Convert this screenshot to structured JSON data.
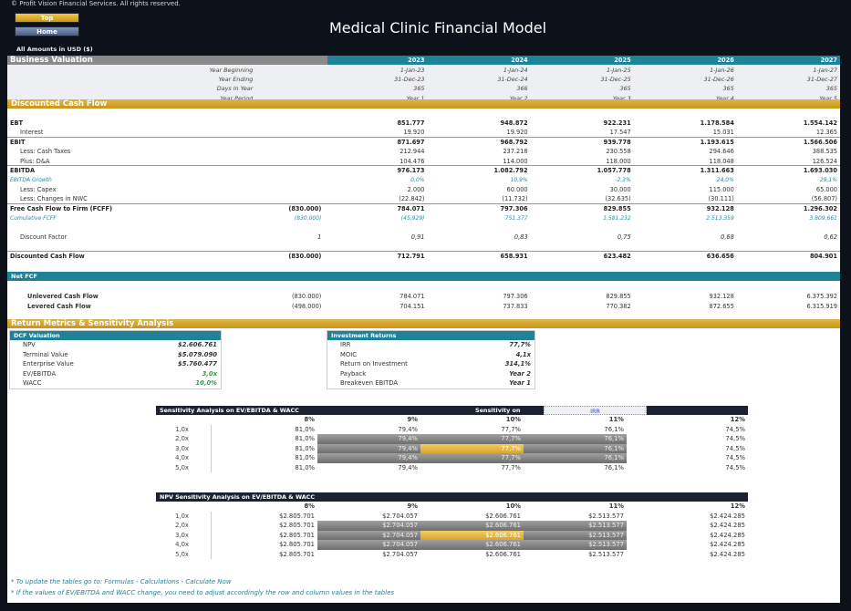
{
  "copyright": "© Profit Vision Financial Services. All rights reserved.",
  "nav": {
    "top": "Top",
    "home": "Home"
  },
  "title": "Medical Clinic Financial Model",
  "amounts_note": "All Amounts in  USD ($)",
  "business_valuation": {
    "title": "Business Valuation",
    "years": [
      "2023",
      "2024",
      "2025",
      "2026",
      "2027"
    ],
    "header_rows": [
      {
        "label": "Year Beginning",
        "values": [
          "1-Jan-23",
          "1-Jan-24",
          "1-Jan-25",
          "1-Jan-26",
          "1-Jan-27"
        ]
      },
      {
        "label": "Year Ending",
        "values": [
          "31-Dec-23",
          "31-Dec-24",
          "31-Dec-25",
          "31-Dec-26",
          "31-Dec-27"
        ]
      },
      {
        "label": "Days in Year",
        "values": [
          "365",
          "366",
          "365",
          "365",
          "365"
        ]
      },
      {
        "label": "Year Period",
        "values": [
          "Year 1",
          "Year 2",
          "Year 3",
          "Year 4",
          "Year 5"
        ]
      }
    ]
  },
  "dcf": {
    "title": "Discounted Cash Flow",
    "rows": [
      {
        "label": "EBT",
        "initial": "",
        "values": [
          "851.777",
          "948.872",
          "922.231",
          "1.178.584",
          "1.554.142"
        ]
      },
      {
        "label": "Interest",
        "initial": "",
        "values": [
          "19.920",
          "19.920",
          "17.547",
          "15.031",
          "12.365"
        ]
      },
      {
        "label": "EBIT",
        "initial": "",
        "values": [
          "871.697",
          "968.792",
          "939.778",
          "1.193.615",
          "1.566.506"
        ]
      },
      {
        "label": "Less: Cash Taxes",
        "initial": "",
        "values": [
          "212.944",
          "237.218",
          "230.558",
          "294.646",
          "388.535"
        ]
      },
      {
        "label": "Plus: D&A",
        "initial": "",
        "values": [
          "104.476",
          "114.000",
          "118.000",
          "118.048",
          "126.524"
        ]
      },
      {
        "label": "EBITDA",
        "initial": "",
        "values": [
          "976.173",
          "1.082.792",
          "1.057.778",
          "1.311.663",
          "1.693.030"
        ]
      },
      {
        "label": "EBITDA Growth",
        "initial": "",
        "values": [
          "0,0%",
          "10,9%",
          "-2,3%",
          "24,0%",
          "29,1%"
        ]
      },
      {
        "label": "Less: Capex",
        "initial": "",
        "values": [
          "2.000",
          "60.000",
          "30.000",
          "115.000",
          "65.000"
        ]
      },
      {
        "label": "Less: Changes in NWC",
        "initial": "",
        "values": [
          "(22.842)",
          "(11.732)",
          "(32.635)",
          "(30.111)",
          "(56.807)"
        ]
      },
      {
        "label": "Free Cash Flow to Firm (FCFF)",
        "initial": "(830.000)",
        "values": [
          "784.071",
          "797.306",
          "829.855",
          "932.128",
          "1.296.302"
        ]
      },
      {
        "label": "Cumulative FCFF",
        "initial": "(830.000)",
        "values": [
          "(45.929)",
          "751.377",
          "1.581.232",
          "2.513.359",
          "3.809.661"
        ]
      },
      {
        "label": "",
        "initial": "",
        "values": [
          "",
          "",
          "",
          "",
          ""
        ]
      },
      {
        "label": "Discount Factor",
        "initial": "1",
        "values": [
          "0,91",
          "0,83",
          "0,75",
          "0,68",
          "0,62"
        ]
      },
      {
        "label": "",
        "initial": "",
        "values": [
          "",
          "",
          "",
          "",
          ""
        ]
      },
      {
        "label": "Discounted Cash Flow",
        "initial": "(830.000)",
        "values": [
          "712.791",
          "658.931",
          "623.482",
          "636.656",
          "804.901"
        ]
      }
    ]
  },
  "net_fcf": {
    "title": "Net FCF",
    "rows": [
      {
        "label": "Unlevered Cash Flow",
        "initial": "(830.000)",
        "values": [
          "784.071",
          "797.306",
          "829.855",
          "932.128",
          "6.375.392"
        ]
      },
      {
        "label": "Levered Cash Flow",
        "initial": "(498.000)",
        "values": [
          "704.151",
          "737.833",
          "770.382",
          "872.655",
          "6.315.919"
        ]
      }
    ]
  },
  "returns": {
    "title": "Return Metrics & Sensitivity Analysis",
    "dcf_valuation": {
      "title": "DCF Valuation",
      "rows": [
        {
          "label": "NPV",
          "value": "$2.606.761"
        },
        {
          "label": "Terminal Value",
          "value": "$5.079.090"
        },
        {
          "label": "Enterprise Value",
          "value": "$5.760.477"
        },
        {
          "label": "EV/EBITDA",
          "value": "3,0x"
        },
        {
          "label": "WACC",
          "value": "10,0%"
        }
      ]
    },
    "investment_returns": {
      "title": "Investment Returns",
      "rows": [
        {
          "label": "IRR",
          "value": "77,7%"
        },
        {
          "label": "MOIC",
          "value": "4,1x"
        },
        {
          "label": "Return on Investment",
          "value": "314,1%"
        },
        {
          "label": "Payback",
          "value": "Year 2"
        },
        {
          "label": "Breakeven EBITDA",
          "value": "Year 1"
        }
      ]
    }
  },
  "sensitivity_irr": {
    "title": "Sensitivity Analysis on EV/EBITDA & WACC",
    "sensitivity_on_label": "Sensitivity on",
    "sensitivity_on_value": "IRR",
    "columns": [
      "8%",
      "9%",
      "10%",
      "11%",
      "12%"
    ],
    "rows": [
      {
        "label": "1,0x",
        "values": [
          "81,0%",
          "79,4%",
          "77,7%",
          "76,1%",
          "74,5%"
        ]
      },
      {
        "label": "2,0x",
        "values": [
          "81,0%",
          "79,4%",
          "77,7%",
          "76,1%",
          "74,5%"
        ]
      },
      {
        "label": "3,0x",
        "values": [
          "81,0%",
          "79,4%",
          "77,7%",
          "76,1%",
          "74,5%"
        ]
      },
      {
        "label": "4,0x",
        "values": [
          "81,0%",
          "79,4%",
          "77,7%",
          "76,1%",
          "74,5%"
        ]
      },
      {
        "label": "5,0x",
        "values": [
          "81,0%",
          "79,4%",
          "77,7%",
          "76,1%",
          "74,5%"
        ]
      }
    ]
  },
  "sensitivity_npv": {
    "title": "NPV Sensitivity Analysis on EV/EBITDA & WACC",
    "columns": [
      "8%",
      "9%",
      "10%",
      "11%",
      "12%"
    ],
    "rows": [
      {
        "label": "1,0x",
        "values": [
          "$2.805.701",
          "$2.704.057",
          "$2.606.761",
          "$2.513.577",
          "$2.424.285"
        ]
      },
      {
        "label": "2,0x",
        "values": [
          "$2.805.701",
          "$2.704.057",
          "$2.606.761",
          "$2.513.577",
          "$2.424.285"
        ]
      },
      {
        "label": "3,0x",
        "values": [
          "$2.805.701",
          "$2.704.057",
          "$2.606.761",
          "$2.513.577",
          "$2.424.285"
        ]
      },
      {
        "label": "4,0x",
        "values": [
          "$2.805.701",
          "$2.704.057",
          "$2.606.761",
          "$2.513.577",
          "$2.424.285"
        ]
      },
      {
        "label": "5,0x",
        "values": [
          "$2.805.701",
          "$2.704.057",
          "$2.606.761",
          "$2.513.577",
          "$2.424.285"
        ]
      }
    ]
  },
  "notes": [
    "* To update the tables go to: Formulas - Calculations - Calculate Now",
    "* If the values of EV/EBITDA and WACC change, you need to adjust accordingly the row and column values in the tables"
  ],
  "colors": {
    "gold": "#d4a42a",
    "teal": "#1f8398",
    "navy": "#141a26",
    "highlight": "#e8b840"
  }
}
